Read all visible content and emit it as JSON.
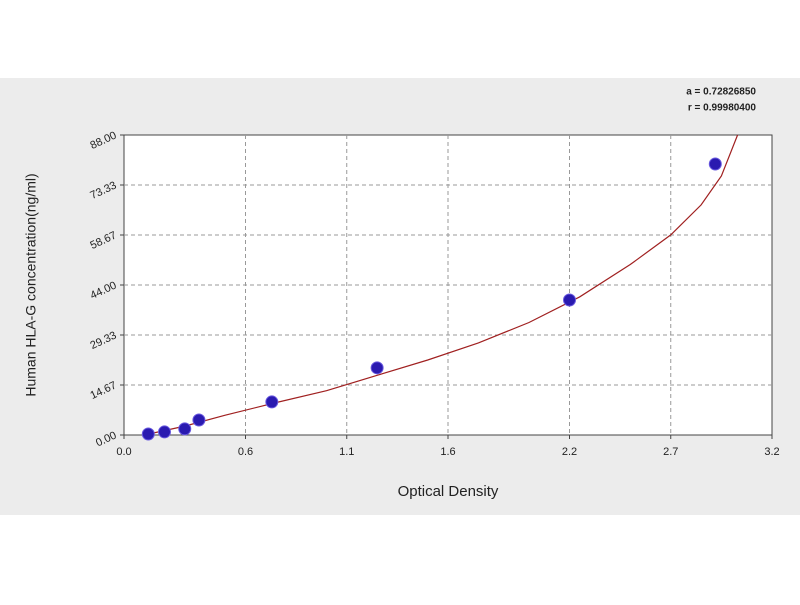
{
  "chart_data": {
    "type": "scatter",
    "x_label": "Optical Density",
    "y_label": "Human  HLA-G concentration(ng/ml)",
    "annotations": [
      "a = 0.72826850",
      "r = 0.99980400"
    ],
    "xlim": [
      0,
      3.2
    ],
    "ylim": [
      0,
      88
    ],
    "xticks": [
      {
        "value": 0,
        "label": "0.0"
      },
      0.6,
      1.1,
      1.6,
      2.2,
      2.7,
      3.2
    ],
    "yticks": [
      {
        "value": 0,
        "label": "0.00"
      },
      14.67,
      29.33,
      {
        "value": 44,
        "label": "44.00"
      },
      58.67,
      73.33,
      {
        "value": 88,
        "label": "88.00"
      }
    ],
    "grid": true,
    "series": [
      {
        "kind": "points",
        "color": "#2a1ab0",
        "x": [
          0.12,
          0.2,
          0.3,
          0.37,
          0.73,
          1.25,
          2.2,
          2.92
        ],
        "values": [
          0.3,
          0.9,
          1.8,
          4.4,
          9.7,
          19.7,
          39.6,
          79.5
        ]
      },
      {
        "kind": "fit",
        "color": "#a02020",
        "x": [
          0.1,
          0.3,
          0.5,
          0.75,
          1.0,
          1.25,
          1.5,
          1.75,
          2.0,
          2.25,
          2.5,
          2.7,
          2.85,
          2.95,
          3.03
        ],
        "values": [
          0.0,
          2.6,
          5.8,
          9.5,
          13.0,
          17.5,
          22.0,
          27.0,
          33.0,
          40.5,
          50.0,
          58.7,
          67.5,
          76.0,
          88.0
        ]
      }
    ]
  }
}
